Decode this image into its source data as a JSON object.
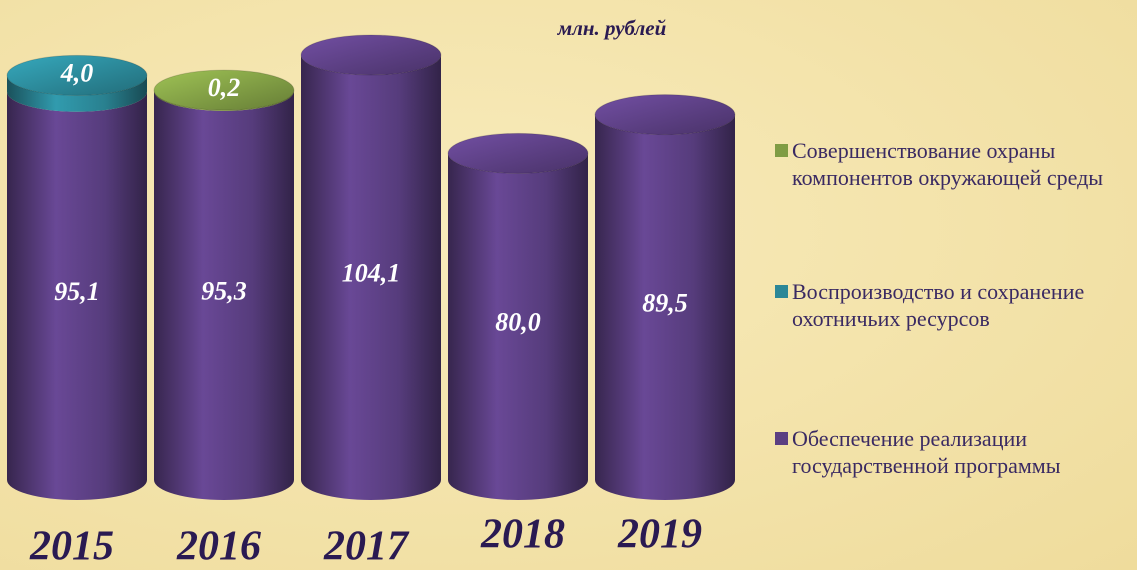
{
  "chart_data": {
    "type": "bar",
    "stacked": true,
    "subtitle": "млн. рублей",
    "categories": [
      "2015",
      "2016",
      "2017",
      "2018",
      "2019"
    ],
    "series": [
      {
        "name": "Обеспечение реализации государственной программы",
        "color": "#5b3f82",
        "values": [
          95.1,
          95.3,
          104.1,
          80.0,
          89.5
        ],
        "value_labels": [
          "95,1",
          "95,3",
          "104,1",
          "80,0",
          "89,5"
        ]
      },
      {
        "name": "Воспроизводство и сохранение охотничьих ресурсов",
        "color": "#2b8797",
        "values": [
          4.0,
          null,
          null,
          null,
          null
        ],
        "value_labels": [
          "4,0",
          null,
          null,
          null,
          null
        ]
      },
      {
        "name": "Совершенствование охраны компонентов окружающей среды",
        "color": "#7f9c44",
        "values": [
          null,
          0.2,
          null,
          null,
          null
        ],
        "value_labels": [
          null,
          "0,2",
          null,
          null,
          null
        ]
      }
    ]
  }
}
